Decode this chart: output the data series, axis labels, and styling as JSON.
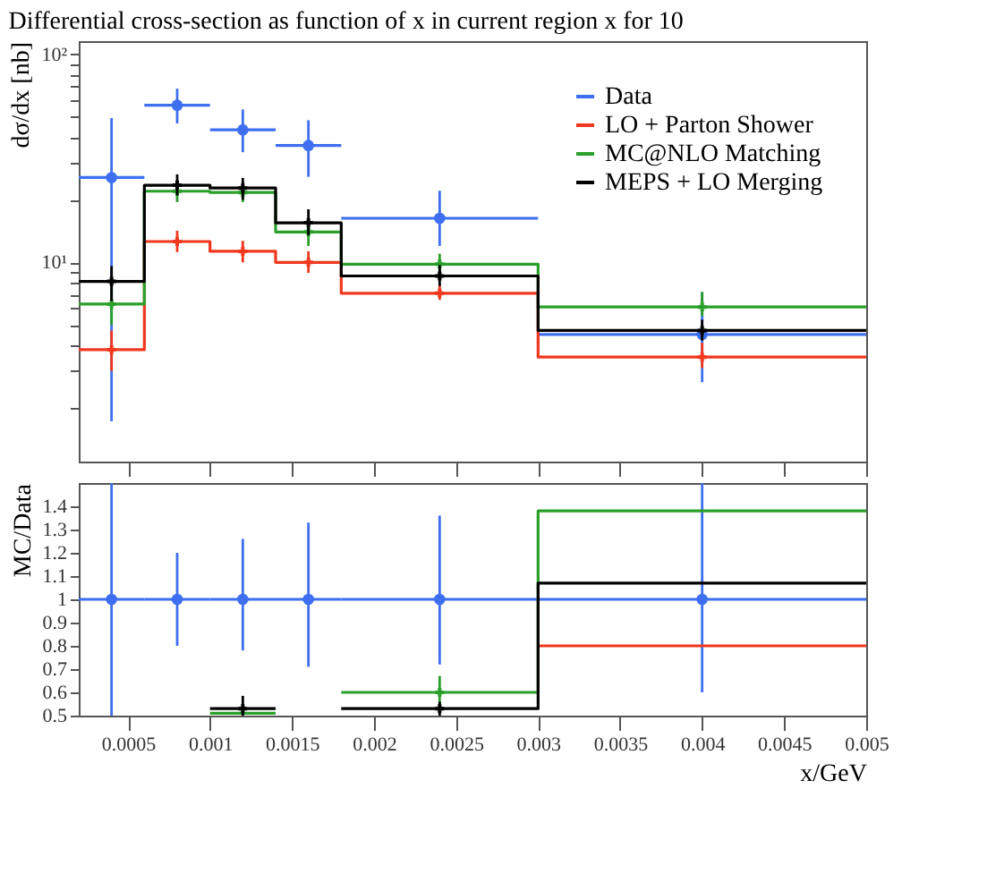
{
  "chart_data": [
    {
      "type": "step",
      "title": "Differential cross-section as function of x in current region x for 10",
      "ylabel": "dσ/dx [nb]",
      "log": "y",
      "xlim": [
        0.0002,
        0.005
      ],
      "xticks": [
        0.0005,
        0.001,
        0.0015,
        0.002,
        0.0025,
        0.003,
        0.0035,
        0.004,
        0.0045,
        0.005
      ],
      "ylim": [
        1.1,
        116
      ],
      "yticks": [
        {
          "value": 2,
          "label": null
        },
        {
          "value": 3,
          "label": null
        },
        {
          "value": 4,
          "label": null
        },
        {
          "value": 5,
          "label": null
        },
        {
          "value": 6,
          "label": null
        },
        {
          "value": 7,
          "label": null
        },
        {
          "value": 8,
          "label": null
        },
        {
          "value": 9,
          "label": null
        },
        {
          "value": 10,
          "label": "10¹"
        },
        {
          "value": 20,
          "label": null
        },
        {
          "value": 30,
          "label": null
        },
        {
          "value": 40,
          "label": null
        },
        {
          "value": 50,
          "label": null
        },
        {
          "value": 60,
          "label": null
        },
        {
          "value": 70,
          "label": null
        },
        {
          "value": 80,
          "label": null
        },
        {
          "value": 90,
          "label": null
        },
        {
          "value": 100,
          "label": "10²"
        }
      ],
      "tick_labels": "y",
      "legend": "top right",
      "series": [
        {
          "name": "Data",
          "type": "scatter",
          "marker": "circle",
          "color": "#3d6ff0",
          "x": [
            0.0004,
            0.0008,
            0.0012,
            0.0016,
            0.0024,
            0.004
          ],
          "values": [
            25.6,
            57,
            43.4,
            36.5,
            16.3,
            4.5
          ],
          "errors": [
            [
              1.72,
              49.5
            ],
            [
              46.6,
              68.5
            ],
            [
              33.9,
              54.4
            ],
            [
              25.8,
              48.3
            ],
            [
              12.0,
              22.1
            ],
            [
              2.65,
              7.2
            ]
          ],
          "xerrors": [
            0.0002,
            0.0002,
            0.0002,
            0.0002,
            0.0006,
            0.001
          ]
        },
        {
          "name": "LO + Parton Shower",
          "color": "#f0381f",
          "x": [
            0.0002,
            0.0006,
            0.001,
            0.0014,
            0.0018,
            0.003,
            0.005
          ],
          "values": [
            3.8,
            12.6,
            11.3,
            10,
            7.1,
            3.5,
            3.5
          ]
        },
        {
          "name": "MC@NLO Matching",
          "color": "#2aa02a",
          "x": [
            0.0002,
            0.0006,
            0.001,
            0.0014,
            0.0018,
            0.003,
            0.005
          ],
          "values": [
            6.3,
            22,
            21.7,
            14,
            9.8,
            6.1,
            6.1
          ]
        },
        {
          "name": "MEPS + LO Merging",
          "color": "#000000",
          "x": [
            0.0002,
            0.0006,
            0.001,
            0.0014,
            0.0018,
            0.003,
            0.005
          ],
          "values": [
            8.1,
            23.5,
            22.8,
            15.5,
            8.6,
            4.7,
            4.7
          ]
        },
        {
          "type": "scatter",
          "marker": "cross",
          "color": "#f0381f",
          "x": [
            0.0004,
            0.0008,
            0.0012,
            0.0016,
            0.0024,
            0.004
          ],
          "values": [
            3.8,
            12.6,
            11.3,
            10,
            7.1,
            3.5
          ],
          "errors": [
            [
              3.0,
              4.7
            ],
            [
              11.2,
              14.2
            ],
            [
              10.0,
              12.7
            ],
            [
              8.9,
              11.3
            ],
            [
              6.6,
              7.8
            ],
            [
              3.1,
              4.1
            ]
          ]
        },
        {
          "type": "scatter",
          "marker": "cross",
          "color": "#2aa02a",
          "x": [
            0.0004,
            0.0008,
            0.0012,
            0.0016,
            0.0024,
            0.004
          ],
          "values": [
            6.3,
            22,
            21.7,
            14,
            9.8,
            6.1
          ],
          "errors": [
            [
              5.0,
              8.0
            ],
            [
              19.5,
              25
            ],
            [
              19.5,
              24.5
            ],
            [
              12,
              16
            ],
            [
              8.5,
              11
            ],
            [
              5.5,
              7.2
            ]
          ]
        },
        {
          "type": "scatter",
          "marker": "cross",
          "color": "#000000",
          "x": [
            0.0004,
            0.0008,
            0.0012,
            0.0016,
            0.0024,
            0.004
          ],
          "values": [
            8.1,
            23.5,
            22.8,
            15.5,
            8.6,
            4.7
          ],
          "errors": [
            [
              6.5,
              9.6
            ],
            [
              21,
              26.5
            ],
            [
              20,
              25.5
            ],
            [
              13.5,
              18
            ],
            [
              7.7,
              9.7
            ],
            [
              4.2,
              5.3
            ]
          ]
        }
      ]
    },
    {
      "type": "step",
      "ylabel": "MC/Data",
      "xlabel": "x/GeV",
      "xlim": [
        0.0002,
        0.005
      ],
      "xticks": [
        0.0005,
        0.001,
        0.0015,
        0.002,
        0.0025,
        0.003,
        0.0035,
        0.004,
        0.0045,
        0.005
      ],
      "ylim": [
        0.5,
        1.5
      ],
      "yticks": [
        0.5,
        0.6,
        0.7,
        0.8,
        0.9,
        1,
        1.1,
        1.2,
        1.3,
        1.4
      ],
      "series": [
        {
          "type": "scatter",
          "marker": "circle",
          "color": "#3d6ff0",
          "x": [
            0.0004,
            0.0008,
            0.0012,
            0.0016,
            0.0024,
            0.004
          ],
          "values": [
            1,
            1,
            1,
            1,
            1,
            1
          ],
          "errors": [
            [
              0.5,
              1.5
            ],
            [
              0.8,
              1.2
            ],
            [
              0.78,
              1.26
            ],
            [
              0.71,
              1.33
            ],
            [
              0.72,
              1.36
            ],
            [
              0.6,
              1.5
            ]
          ],
          "xerrors": [
            0.0002,
            0.0002,
            0.0002,
            0.0002,
            0.0006,
            0.001
          ]
        },
        {
          "color": "#f0381f",
          "x": [
            0.003,
            0.005
          ],
          "values": [
            0.8,
            0.8
          ]
        },
        {
          "color": "#2aa02a",
          "x": [
            0.001,
            0.0014,
            0.0018,
            0.003,
            0.005
          ],
          "values": [
            0.51,
            null,
            0.6,
            1.38,
            1.38
          ]
        },
        {
          "color": "#000000",
          "x": [
            0.001,
            0.0014,
            0.0018,
            0.003,
            0.005
          ],
          "values": [
            0.53,
            null,
            0.53,
            1.07,
            1.07
          ]
        },
        {
          "type": "scatter",
          "marker": "cross",
          "color": "#2aa02a",
          "x": [
            0.0024
          ],
          "values": [
            0.6
          ],
          "errors": [
            [
              0.55,
              0.67
            ]
          ]
        },
        {
          "type": "scatter",
          "marker": "cross",
          "color": "#000000",
          "x": [
            0.0012,
            0.0024
          ],
          "values": [
            0.53,
            0.53
          ],
          "errors": [
            [
              0.5,
              0.585
            ],
            [
              0.5,
              0.56
            ]
          ]
        }
      ]
    }
  ]
}
